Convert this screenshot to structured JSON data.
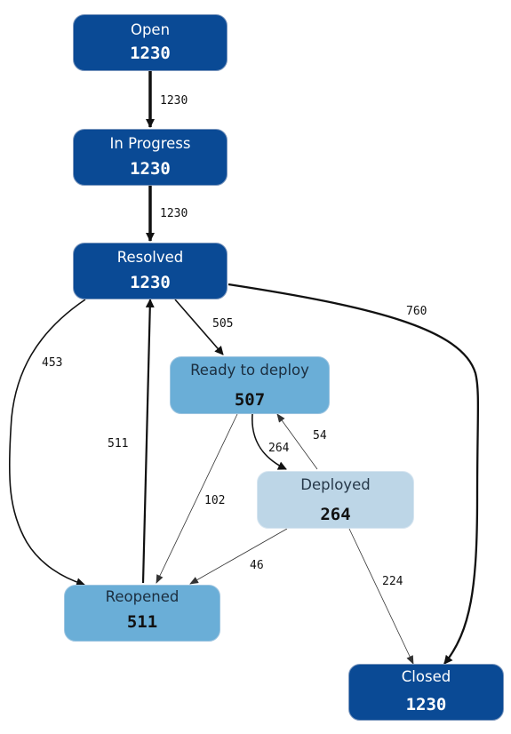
{
  "nodes": {
    "open": {
      "name": "Open",
      "count": "1230",
      "color": "#0a4a95"
    },
    "in_progress": {
      "name": "In Progress",
      "count": "1230",
      "color": "#0a4a95"
    },
    "resolved": {
      "name": "Resolved",
      "count": "1230",
      "color": "#0a4a95"
    },
    "ready_to_deploy": {
      "name": "Ready to deploy",
      "count": "507",
      "color": "#6aaed7"
    },
    "deployed": {
      "name": "Deployed",
      "count": "264",
      "color": "#bdd6e7"
    },
    "reopened": {
      "name": "Reopened",
      "count": "511",
      "color": "#6aaed7"
    },
    "closed": {
      "name": "Closed",
      "count": "1230",
      "color": "#0a4a95"
    }
  },
  "edges": [
    {
      "from": "Open",
      "to": "In Progress",
      "label": "1230"
    },
    {
      "from": "In Progress",
      "to": "Resolved",
      "label": "1230"
    },
    {
      "from": "Resolved",
      "to": "Ready to deploy",
      "label": "505"
    },
    {
      "from": "Resolved",
      "to": "Closed",
      "label": "760"
    },
    {
      "from": "Resolved",
      "to": "Reopened",
      "label": "453"
    },
    {
      "from": "Reopened",
      "to": "Resolved",
      "label": "511"
    },
    {
      "from": "Ready to deploy",
      "to": "Deployed",
      "label": "264"
    },
    {
      "from": "Deployed",
      "to": "Ready to deploy",
      "label": "54"
    },
    {
      "from": "Ready to deploy",
      "to": "Reopened",
      "label": "102"
    },
    {
      "from": "Deployed",
      "to": "Reopened",
      "label": "46"
    },
    {
      "from": "Deployed",
      "to": "Closed",
      "label": "224"
    }
  ]
}
